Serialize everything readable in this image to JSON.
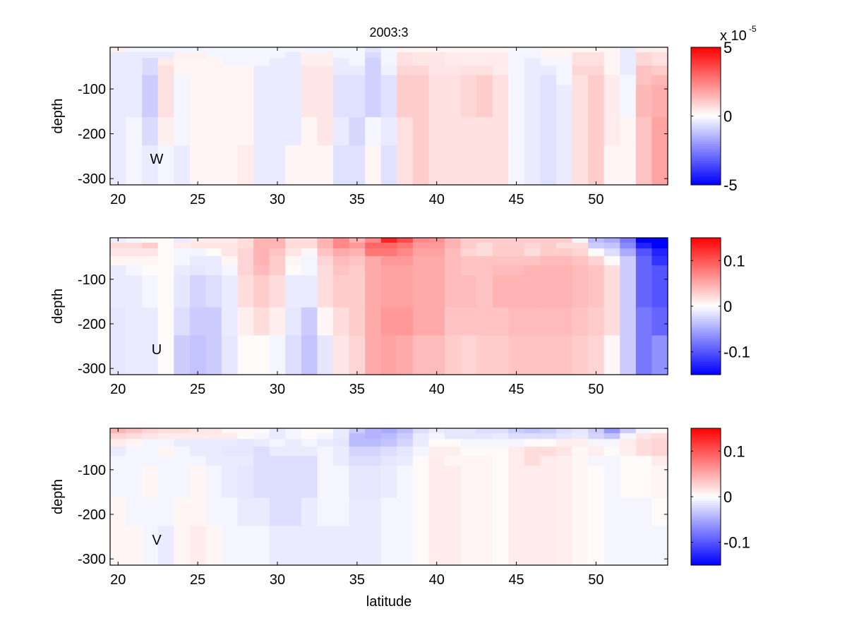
{
  "figure_title": "2003:3",
  "chart_data": [
    {
      "type": "heatmap",
      "panel_label": "W",
      "title": "2003:3",
      "xlabel": "",
      "ylabel": "depth",
      "xlim": [
        19.5,
        54.5
      ],
      "ylim": [
        -314,
        -7
      ],
      "x_ticks": [
        20,
        25,
        30,
        35,
        40,
        45,
        50
      ],
      "x_tick_labels": [
        "20",
        "25",
        "30",
        "35",
        "40",
        "45",
        "50"
      ],
      "y_ticks": [
        -300,
        -200,
        -100
      ],
      "y_tick_labels": [
        "-300",
        "-200",
        "-100"
      ],
      "x": [
        20,
        21,
        22,
        23,
        24,
        25,
        26,
        27,
        28,
        29,
        30,
        31,
        32,
        33,
        34,
        35,
        36,
        37,
        38,
        39,
        40,
        41,
        42,
        43,
        44,
        45,
        46,
        47,
        48,
        49,
        50,
        51,
        52,
        53,
        54
      ],
      "depth_edges": [
        -7,
        -18,
        -31,
        -48,
        -69,
        -91,
        -163,
        -226,
        -314
      ],
      "colorbar": {
        "clim": [
          -5,
          5
        ],
        "ticks": [
          -5,
          0,
          5
        ],
        "tick_labels": [
          "-5",
          "0",
          "5"
        ],
        "multiplier_label": "x 10",
        "multiplier_exponent": "-5"
      },
      "values": [
        [
          0.3,
          -0.2,
          -0.2,
          -0.2,
          -0.2,
          -0.2,
          -0.2,
          -0.2,
          -0.2,
          -0.2,
          -0.2,
          -0.2,
          -0.2,
          -0.2,
          -0.2,
          -0.2,
          -0.5,
          -0.2,
          0.2,
          0.2,
          0.2,
          0.2,
          0.2,
          0.2,
          0.2,
          -0.2,
          -0.2,
          0.2,
          0.2,
          0.2,
          0.2,
          0.2,
          -0.4,
          0.3,
          0.3
        ],
        [
          -0.4,
          -0.4,
          -0.4,
          -0.4,
          0.3,
          0.3,
          -0.2,
          -0.2,
          -0.2,
          -0.2,
          -0.2,
          -0.4,
          0.3,
          0.3,
          -0.2,
          -0.2,
          -0.7,
          -0.2,
          0.6,
          0.5,
          0.5,
          0.4,
          0.4,
          0.4,
          0.4,
          -0.2,
          -0.2,
          0.2,
          0.2,
          0.6,
          0.6,
          0.2,
          -0.4,
          0.8,
          0.6
        ],
        [
          -0.4,
          -0.4,
          -0.7,
          0.4,
          0.2,
          0.2,
          0.2,
          -0.2,
          -0.2,
          -0.2,
          -0.4,
          -0.4,
          0.3,
          0.3,
          -0.4,
          -0.2,
          -0.9,
          -0.2,
          0.6,
          0.5,
          0.5,
          0.4,
          0.4,
          0.4,
          0.4,
          -0.2,
          -0.4,
          -0.2,
          -0.2,
          0.6,
          0.6,
          0.2,
          -0.4,
          0.8,
          0.6
        ],
        [
          -0.4,
          -0.4,
          -0.7,
          0.6,
          0.2,
          0.2,
          0.2,
          0.2,
          0.2,
          -0.4,
          -0.4,
          -0.4,
          0.5,
          0.5,
          -0.4,
          -0.4,
          -0.9,
          -0.3,
          0.8,
          0.8,
          0.5,
          0.5,
          0.6,
          0.6,
          0.4,
          -0.2,
          -0.4,
          -0.4,
          -0.2,
          0.8,
          0.8,
          0.2,
          -0.4,
          1.2,
          1.0
        ],
        [
          -0.4,
          -0.4,
          -1.0,
          0.6,
          -0.2,
          0.2,
          0.2,
          0.2,
          0.2,
          -0.4,
          -0.4,
          -0.4,
          0.5,
          0.5,
          -0.6,
          -0.6,
          -0.9,
          -0.6,
          1.0,
          1.0,
          0.6,
          0.6,
          0.8,
          1.0,
          0.6,
          -0.2,
          -0.4,
          -0.6,
          -0.2,
          0.6,
          1.0,
          0.4,
          -0.2,
          1.2,
          1.4
        ],
        [
          -0.4,
          -0.4,
          -1.0,
          0.6,
          -0.2,
          0.2,
          0.2,
          0.2,
          0.2,
          -0.4,
          -0.4,
          -0.4,
          0.5,
          0.5,
          -0.6,
          -0.6,
          -0.9,
          -0.6,
          1.0,
          1.0,
          0.6,
          0.6,
          0.8,
          1.0,
          0.6,
          -0.2,
          -0.4,
          -0.6,
          -0.4,
          0.6,
          1.0,
          0.4,
          -0.2,
          1.4,
          1.6
        ],
        [
          -0.4,
          -0.2,
          -0.7,
          0.3,
          -0.2,
          0.2,
          0.2,
          0.2,
          0.2,
          -0.4,
          -0.4,
          -0.4,
          0.2,
          0.5,
          -0.4,
          -0.8,
          -0.2,
          -0.4,
          0.6,
          1.0,
          0.6,
          0.6,
          0.6,
          0.6,
          0.6,
          -0.2,
          -0.4,
          -0.6,
          -0.4,
          0.6,
          1.0,
          0.4,
          0.2,
          1.2,
          1.8
        ],
        [
          -0.4,
          -0.2,
          -0.4,
          -0.2,
          -0.4,
          0.2,
          0.2,
          0.2,
          0.4,
          -0.4,
          -0.4,
          0.2,
          0.2,
          0.2,
          -0.6,
          -0.6,
          0.2,
          -0.6,
          0.6,
          1.0,
          0.6,
          0.6,
          0.6,
          0.6,
          0.6,
          -0.2,
          -0.4,
          -0.6,
          -0.4,
          0.6,
          1.0,
          0.2,
          0.2,
          1.2,
          1.8
        ]
      ]
    },
    {
      "type": "heatmap",
      "panel_label": "U",
      "title": "",
      "xlabel": "",
      "ylabel": "depth",
      "xlim": [
        19.5,
        54.5
      ],
      "ylim": [
        -314,
        -7
      ],
      "x_ticks": [
        20,
        25,
        30,
        35,
        40,
        45,
        50
      ],
      "x_tick_labels": [
        "20",
        "25",
        "30",
        "35",
        "40",
        "45",
        "50"
      ],
      "y_ticks": [
        -300,
        -200,
        -100
      ],
      "y_tick_labels": [
        "-300",
        "-200",
        "-100"
      ],
      "x": [
        20,
        21,
        22,
        23,
        24,
        25,
        26,
        27,
        28,
        29,
        30,
        31,
        32,
        33,
        34,
        35,
        36,
        37,
        38,
        39,
        40,
        41,
        42,
        43,
        44,
        45,
        46,
        47,
        48,
        49,
        50,
        51,
        52,
        53,
        54
      ],
      "depth_edges": [
        -7,
        -18,
        -31,
        -48,
        -69,
        -91,
        -163,
        -226,
        -314
      ],
      "colorbar": {
        "clim": [
          -0.15,
          0.15
        ],
        "ticks": [
          -0.1,
          0,
          0.1
        ],
        "tick_labels": [
          "-0.1",
          "0",
          "0.1"
        ]
      },
      "values": [
        [
          -0.01,
          -0.006,
          0.003,
          0.003,
          -0.012,
          0.012,
          0.012,
          0.012,
          0.02,
          0.045,
          0.045,
          0.02,
          0.02,
          0.045,
          0.07,
          0.045,
          0.07,
          0.13,
          0.105,
          0.07,
          0.065,
          0.045,
          0.03,
          0.03,
          0.03,
          0.03,
          0.03,
          0.03,
          0.03,
          -0.006,
          -0.04,
          -0.05,
          -0.08,
          -0.15,
          -0.15
        ],
        [
          0.02,
          0.02,
          0.03,
          0.003,
          0.012,
          0.015,
          0.015,
          0.015,
          0.02,
          0.045,
          0.045,
          0.02,
          0.02,
          0.045,
          0.07,
          0.06,
          0.09,
          0.09,
          0.08,
          0.06,
          0.06,
          0.045,
          0.03,
          0.02,
          0.03,
          0.03,
          0.025,
          0.03,
          0.02,
          0.02,
          -0.03,
          -0.035,
          -0.07,
          -0.13,
          -0.15
        ],
        [
          0.015,
          0.015,
          0.015,
          0.003,
          -0.006,
          -0.006,
          0.003,
          0.015,
          0.025,
          0.045,
          0.035,
          0.015,
          0.005,
          0.035,
          0.05,
          0.045,
          0.08,
          0.08,
          0.07,
          0.055,
          0.055,
          0.04,
          0.025,
          0.02,
          0.03,
          0.03,
          0.02,
          0.03,
          0.03,
          0.025,
          0.003,
          -0.02,
          -0.05,
          -0.1,
          -0.13
        ],
        [
          0.006,
          0.006,
          0.006,
          0.003,
          -0.006,
          -0.012,
          -0.012,
          0.006,
          0.025,
          0.045,
          0.03,
          0.006,
          -0.006,
          0.025,
          0.04,
          0.035,
          0.05,
          0.06,
          0.06,
          0.05,
          0.05,
          0.04,
          0.035,
          0.035,
          0.035,
          0.035,
          0.035,
          0.04,
          0.04,
          0.035,
          0.025,
          0.003,
          -0.03,
          -0.09,
          -0.12
        ],
        [
          -0.012,
          -0.006,
          0.003,
          0.003,
          -0.012,
          -0.015,
          -0.012,
          -0.006,
          0.025,
          0.04,
          0.03,
          0.003,
          -0.006,
          0.02,
          0.035,
          0.03,
          0.05,
          0.055,
          0.055,
          0.05,
          0.05,
          0.04,
          0.035,
          0.035,
          0.04,
          0.04,
          0.045,
          0.045,
          0.045,
          0.04,
          0.035,
          0.02,
          -0.03,
          -0.09,
          -0.1
        ],
        [
          -0.012,
          -0.012,
          -0.006,
          0.003,
          -0.015,
          -0.025,
          -0.02,
          -0.012,
          0.02,
          0.03,
          0.02,
          -0.012,
          -0.012,
          0.02,
          0.03,
          0.03,
          0.05,
          0.055,
          0.055,
          0.05,
          0.05,
          0.04,
          0.04,
          0.035,
          0.045,
          0.045,
          0.045,
          0.045,
          0.045,
          0.04,
          0.035,
          0.02,
          -0.03,
          -0.09,
          -0.1
        ],
        [
          -0.015,
          -0.012,
          -0.012,
          0.003,
          -0.02,
          -0.03,
          -0.03,
          -0.012,
          0.01,
          0.02,
          0.01,
          -0.015,
          -0.03,
          0.005,
          0.02,
          0.03,
          0.05,
          0.06,
          0.06,
          0.05,
          0.05,
          0.035,
          0.035,
          0.035,
          0.035,
          0.04,
          0.04,
          0.04,
          0.04,
          0.035,
          0.03,
          0.02,
          -0.03,
          -0.08,
          -0.09
        ],
        [
          -0.015,
          -0.012,
          -0.012,
          0.003,
          -0.03,
          -0.035,
          -0.03,
          -0.015,
          0.003,
          0.003,
          -0.006,
          -0.02,
          -0.035,
          -0.015,
          0.015,
          0.025,
          0.05,
          0.055,
          0.05,
          0.04,
          0.04,
          0.03,
          0.025,
          0.03,
          0.03,
          0.035,
          0.035,
          0.035,
          0.035,
          0.03,
          0.025,
          0.005,
          -0.03,
          -0.08,
          -0.065
        ]
      ]
    },
    {
      "type": "heatmap",
      "panel_label": "V",
      "title": "",
      "xlabel": "latitude",
      "ylabel": "depth",
      "xlim": [
        19.5,
        54.5
      ],
      "ylim": [
        -314,
        -7
      ],
      "x_ticks": [
        20,
        25,
        30,
        35,
        40,
        45,
        50
      ],
      "x_tick_labels": [
        "20",
        "25",
        "30",
        "35",
        "40",
        "45",
        "50"
      ],
      "y_ticks": [
        -300,
        -200,
        -100
      ],
      "y_tick_labels": [
        "-300",
        "-200",
        "-100"
      ],
      "x": [
        20,
        21,
        22,
        23,
        24,
        25,
        26,
        27,
        28,
        29,
        30,
        31,
        32,
        33,
        34,
        35,
        36,
        37,
        38,
        39,
        40,
        41,
        42,
        43,
        44,
        45,
        46,
        47,
        48,
        49,
        50,
        51,
        52,
        53,
        54
      ],
      "depth_edges": [
        -7,
        -18,
        -31,
        -48,
        -69,
        -91,
        -163,
        -226,
        -314
      ],
      "colorbar": {
        "clim": [
          -0.15,
          0.15
        ],
        "ticks": [
          -0.1,
          0,
          0.1
        ],
        "tick_labels": [
          "-0.1",
          "0",
          "0.1"
        ]
      },
      "values": [
        [
          0.045,
          0.035,
          0.025,
          0.02,
          0.02,
          0.015,
          0.015,
          0.005,
          0.005,
          0.003,
          -0.012,
          -0.006,
          0.003,
          0.003,
          -0.012,
          -0.03,
          -0.045,
          -0.05,
          -0.04,
          -0.02,
          -0.012,
          -0.015,
          -0.015,
          -0.02,
          -0.02,
          -0.03,
          -0.035,
          -0.03,
          -0.02,
          -0.015,
          -0.03,
          -0.06,
          -0.03,
          -0.006,
          0.003
        ],
        [
          0.025,
          0.02,
          0.015,
          0.012,
          0.012,
          0.012,
          0.012,
          0.012,
          0.003,
          -0.006,
          -0.012,
          -0.006,
          0.003,
          -0.006,
          -0.012,
          -0.04,
          -0.045,
          -0.04,
          -0.03,
          -0.012,
          -0.006,
          -0.015,
          -0.015,
          -0.015,
          -0.012,
          -0.02,
          -0.02,
          -0.02,
          -0.015,
          -0.012,
          -0.025,
          -0.035,
          -0.006,
          0.015,
          0.02
        ],
        [
          0.012,
          0.006,
          -0.006,
          -0.006,
          -0.012,
          -0.012,
          -0.012,
          -0.012,
          -0.015,
          -0.012,
          -0.006,
          -0.012,
          -0.006,
          -0.012,
          -0.015,
          -0.04,
          -0.04,
          -0.035,
          -0.025,
          -0.012,
          0.003,
          0.003,
          -0.006,
          -0.006,
          -0.006,
          -0.006,
          0.003,
          0.003,
          0.01,
          0.01,
          -0.006,
          -0.006,
          0.012,
          0.02,
          0.025
        ],
        [
          -0.012,
          -0.006,
          -0.006,
          0.006,
          -0.006,
          -0.012,
          -0.012,
          -0.015,
          -0.015,
          -0.02,
          -0.012,
          -0.012,
          -0.012,
          -0.006,
          -0.012,
          -0.025,
          -0.025,
          -0.02,
          -0.015,
          -0.006,
          0.01,
          0.01,
          0.003,
          0.003,
          0.003,
          0.012,
          0.02,
          0.02,
          0.015,
          0.005,
          0.01,
          0.003,
          0.01,
          0.02,
          0.025
        ],
        [
          -0.006,
          -0.006,
          -0.006,
          -0.006,
          -0.006,
          -0.006,
          -0.012,
          -0.012,
          -0.012,
          -0.02,
          -0.02,
          -0.02,
          -0.02,
          -0.006,
          -0.012,
          -0.02,
          -0.02,
          -0.015,
          -0.012,
          0.003,
          0.012,
          0.006,
          0.006,
          0.006,
          0.003,
          0.012,
          0.02,
          0.012,
          0.01,
          0.005,
          -0.006,
          -0.006,
          0.003,
          0.003,
          0.012
        ],
        [
          -0.006,
          -0.006,
          0.006,
          -0.006,
          -0.006,
          0.006,
          -0.006,
          -0.012,
          -0.015,
          -0.02,
          -0.02,
          -0.02,
          -0.02,
          -0.006,
          -0.006,
          -0.015,
          -0.015,
          -0.012,
          -0.006,
          0.003,
          0.012,
          0.012,
          0.006,
          0.006,
          0.003,
          0.012,
          0.012,
          0.012,
          0.01,
          0.005,
          0.003,
          -0.006,
          0.003,
          0.003,
          0.006
        ],
        [
          0.006,
          -0.006,
          -0.006,
          -0.006,
          0.006,
          0.006,
          -0.006,
          -0.006,
          -0.012,
          -0.012,
          -0.02,
          -0.02,
          -0.012,
          -0.006,
          -0.006,
          -0.012,
          -0.012,
          -0.006,
          -0.006,
          0.003,
          0.012,
          0.012,
          0.006,
          0.006,
          0.003,
          0.012,
          0.012,
          0.012,
          0.01,
          0.005,
          0.003,
          -0.006,
          -0.006,
          -0.006,
          0.003
        ],
        [
          0.006,
          0.006,
          -0.006,
          -0.012,
          0.006,
          0.012,
          0.006,
          -0.006,
          -0.006,
          -0.006,
          -0.012,
          -0.012,
          -0.012,
          -0.012,
          -0.012,
          -0.012,
          -0.012,
          -0.006,
          -0.006,
          0.003,
          0.012,
          0.012,
          0.006,
          0.006,
          0.003,
          0.012,
          0.012,
          0.012,
          0.01,
          0.005,
          0.003,
          -0.006,
          -0.006,
          -0.006,
          -0.006
        ]
      ]
    }
  ]
}
